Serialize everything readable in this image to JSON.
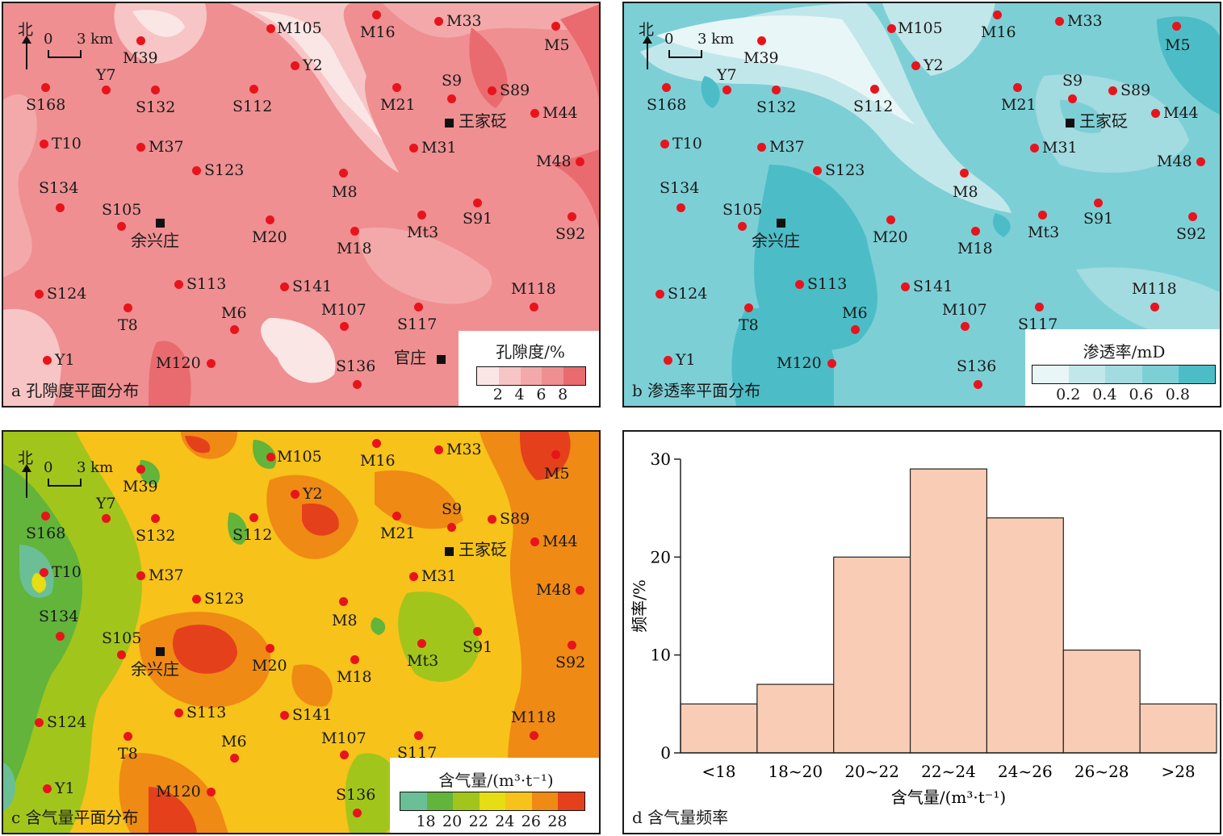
{
  "scale_bar": {
    "north": "北",
    "zero": "0",
    "dist": "3 km"
  },
  "panels": {
    "a": {
      "caption": "a 孔隙度平面分布",
      "legend_title": "孔隙度/%",
      "legend_ticks": [
        "2",
        "4",
        "6",
        "8"
      ],
      "colors": [
        "#fbe6e6",
        "#f7c5c5",
        "#f3a9aa",
        "#ef8f91",
        "#e96b6f"
      ]
    },
    "b": {
      "caption": "b 渗透率平面分布",
      "legend_title": "渗透率/mD",
      "legend_ticks": [
        "0.2",
        "0.4",
        "0.6",
        "0.8"
      ],
      "colors": [
        "#e8f6f7",
        "#c2e7ea",
        "#a2dbe0",
        "#7dcfd6",
        "#4cbdc7"
      ]
    },
    "c": {
      "caption": "c 含气量平面分布",
      "legend_title": "含气量/(m³·t⁻¹)",
      "legend_ticks": [
        "18",
        "20",
        "22",
        "24",
        "26",
        "28"
      ],
      "colors": [
        "#6bbf96",
        "#62b43b",
        "#a2c51c",
        "#e6dd15",
        "#f7c21a",
        "#ef8a14",
        "#e5401c"
      ]
    },
    "d": {
      "caption": "d 含气量频率"
    }
  },
  "wells": [
    {
      "name": "M105"
    },
    {
      "name": "M16"
    },
    {
      "name": "M33"
    },
    {
      "name": "M5"
    },
    {
      "name": "M39"
    },
    {
      "name": "Y2"
    },
    {
      "name": "Y7"
    },
    {
      "name": "S168"
    },
    {
      "name": "S132"
    },
    {
      "name": "S112"
    },
    {
      "name": "M21"
    },
    {
      "name": "S9"
    },
    {
      "name": "S89"
    },
    {
      "name": "M44"
    },
    {
      "name": "T10"
    },
    {
      "name": "M37"
    },
    {
      "name": "M31"
    },
    {
      "name": "M48"
    },
    {
      "name": "S123"
    },
    {
      "name": "M8"
    },
    {
      "name": "S134"
    },
    {
      "name": "S105"
    },
    {
      "name": "M20"
    },
    {
      "name": "M18"
    },
    {
      "name": "Mt3"
    },
    {
      "name": "S91"
    },
    {
      "name": "S92"
    },
    {
      "name": "S113"
    },
    {
      "name": "S141"
    },
    {
      "name": "S124"
    },
    {
      "name": "T8"
    },
    {
      "name": "M6"
    },
    {
      "name": "M107"
    },
    {
      "name": "S117"
    },
    {
      "name": "M118"
    },
    {
      "name": "Y1"
    },
    {
      "name": "M120"
    },
    {
      "name": "S136"
    }
  ],
  "towns": [
    {
      "name": "王家砭"
    },
    {
      "name": "余兴庄"
    },
    {
      "name": "官庄"
    }
  ],
  "chart_data": {
    "type": "bar",
    "categories": [
      "<18",
      "18~20",
      "20~22",
      "22~24",
      "24~26",
      "26~28",
      ">28"
    ],
    "values": [
      5,
      7,
      20,
      29,
      24,
      10.5,
      5
    ],
    "xlabel": "含气量/(m³·t⁻¹)",
    "ylabel": "频率/%",
    "ylim": [
      0,
      30
    ],
    "yticks": [
      "0",
      "10",
      "20",
      "30"
    ],
    "bar_color": "#f9cdb5"
  }
}
